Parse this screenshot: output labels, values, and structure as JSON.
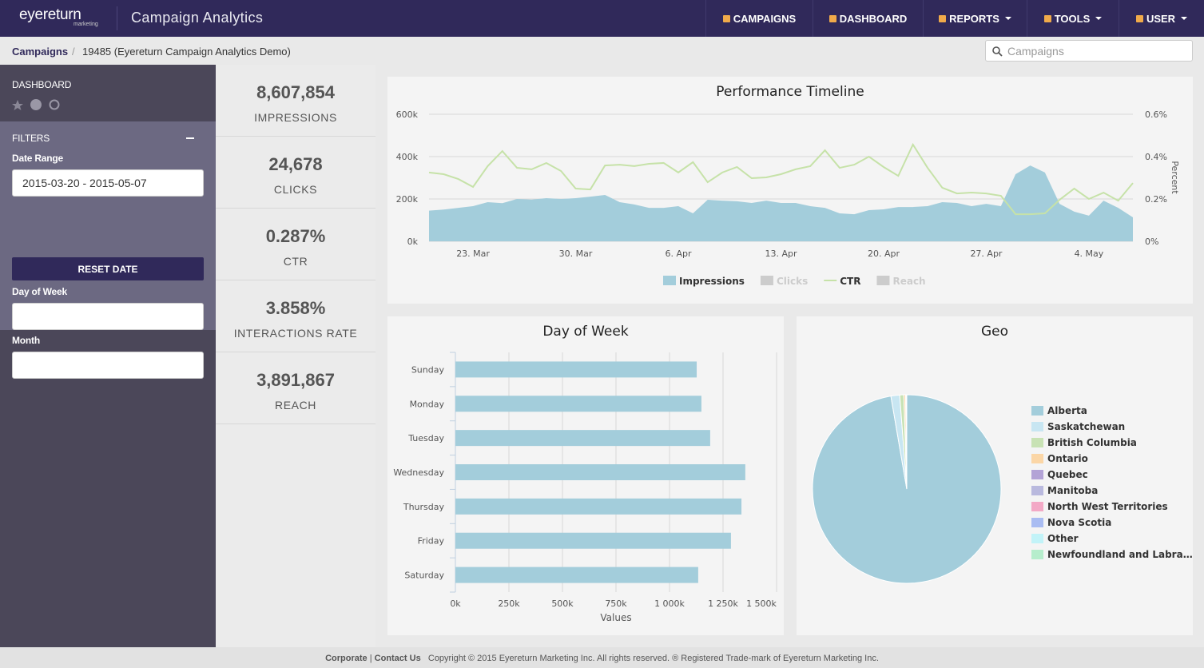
{
  "header": {
    "brand": "eyereturn",
    "brand_sub": "marketing",
    "app_title": "Campaign Analytics",
    "nav": [
      "CAMPAIGNS",
      "DASHBOARD",
      "REPORTS",
      "TOOLS",
      "USER"
    ]
  },
  "breadcrumb": {
    "root": "Campaigns",
    "current": "19485 (Eyereturn Campaign Analytics Demo)"
  },
  "search_placeholder": "Campaigns",
  "sidebar": {
    "dashboard_heading": "DASHBOARD",
    "filters_heading": "FILTERS",
    "date_range_label": "Date Range",
    "date_range_value": "2015-03-20 - 2015-05-07",
    "reset_button": "RESET DATE",
    "day_of_week_label": "Day of Week",
    "month_label": "Month"
  },
  "kpis": [
    {
      "value": "8,607,854",
      "label": "IMPRESSIONS"
    },
    {
      "value": "24,678",
      "label": "CLICKS"
    },
    {
      "value": "0.287%",
      "label": "CTR"
    },
    {
      "value": "3.858%",
      "label": "INTERACTIONS RATE"
    },
    {
      "value": "3,891,867",
      "label": "REACH"
    }
  ],
  "chart_data": [
    {
      "type": "line",
      "title": "Performance Timeline",
      "y2label": "Percent",
      "categories": [
        null,
        null,
        null,
        "23. Mar",
        null,
        null,
        null,
        null,
        null,
        null,
        "30. Mar",
        null,
        null,
        null,
        null,
        null,
        null,
        "6. Apr",
        null,
        null,
        null,
        null,
        null,
        null,
        "13. Apr",
        null,
        null,
        null,
        null,
        null,
        null,
        "20. Apr",
        null,
        null,
        null,
        null,
        null,
        null,
        "27. Apr",
        null,
        null,
        null,
        null,
        null,
        null,
        "4. May",
        null,
        null,
        null
      ],
      "ylim": [
        0,
        600000
      ],
      "yticks": [
        {
          "value": 0,
          "label": "0k"
        },
        {
          "value": 200000,
          "label": "200k"
        },
        {
          "value": 400000,
          "label": "400k"
        },
        {
          "value": 600000,
          "label": "600k"
        }
      ],
      "y2lim": [
        0,
        0.6
      ],
      "y2ticks": [
        {
          "value": 0,
          "label": "0%"
        },
        {
          "value": 0.2,
          "label": "0.2%"
        },
        {
          "value": 0.4,
          "label": "0.4%"
        },
        {
          "value": 0.6,
          "label": "0.6%"
        }
      ],
      "grid": true,
      "series": [
        {
          "name": "Impressions",
          "color": "#a3cddb",
          "mark": "area",
          "values": [
            145000,
            150000,
            158000,
            166000,
            185000,
            180000,
            200000,
            197000,
            204000,
            200000,
            204000,
            211000,
            219000,
            185000,
            174000,
            158000,
            158000,
            166000,
            132000,
            196000,
            192000,
            189000,
            181000,
            192000,
            181000,
            181000,
            166000,
            158000,
            132000,
            128000,
            147000,
            151000,
            162000,
            162000,
            166000,
            185000,
            181000,
            166000,
            177000,
            166000,
            317000,
            358000,
            325000,
            177000,
            140000,
            121000,
            192000,
            158000,
            113000
          ]
        },
        {
          "name": "Clicks",
          "color": "#cccccc",
          "mark": "area",
          "visible": false
        },
        {
          "name": "CTR",
          "color": "#c6e2a8",
          "mark": "line",
          "axis": "y2",
          "values": [
            0.325,
            0.317,
            0.294,
            0.257,
            0.355,
            0.426,
            0.347,
            0.34,
            0.37,
            0.332,
            0.249,
            0.245,
            0.358,
            0.362,
            0.355,
            0.366,
            0.37,
            0.325,
            0.374,
            0.279,
            0.325,
            0.351,
            0.298,
            0.302,
            0.317,
            0.34,
            0.355,
            0.43,
            0.347,
            0.362,
            0.4,
            0.351,
            0.309,
            0.457,
            0.347,
            0.253,
            0.226,
            0.23,
            0.226,
            0.215,
            0.128,
            0.128,
            0.132,
            0.196,
            0.249,
            0.2,
            0.23,
            0.192,
            0.275
          ]
        },
        {
          "name": "Reach",
          "color": "#cccccc",
          "mark": "area",
          "visible": false
        }
      ]
    },
    {
      "type": "bar",
      "orientation": "horizontal",
      "title": "Day of Week",
      "xlabel": "Values",
      "color": "#a3cddb",
      "categories": [
        "Sunday",
        "Monday",
        "Tuesday",
        "Wednesday",
        "Thursday",
        "Friday",
        "Saturday"
      ],
      "values": [
        1127000,
        1149000,
        1190000,
        1354000,
        1336000,
        1287000,
        1134000
      ],
      "xlim": [
        0,
        1500000
      ],
      "xticks": [
        {
          "value": 0,
          "label": "0k"
        },
        {
          "value": 250000,
          "label": "250k"
        },
        {
          "value": 500000,
          "label": "500k"
        },
        {
          "value": 750000,
          "label": "750k"
        },
        {
          "value": 1000000,
          "label": "1 000k"
        },
        {
          "value": 1250000,
          "label": "1 250k"
        },
        {
          "value": 1500000,
          "label": "1 500k"
        }
      ],
      "grid": true
    },
    {
      "type": "pie",
      "title": "Geo",
      "categories": [
        "Alberta",
        "Saskatchewan",
        "British Columbia",
        "Ontario",
        "Quebec",
        "Manitoba",
        "North West Territories",
        "Nova Scotia",
        "Other",
        "Newfoundland and Labra…"
      ],
      "values": [
        97.3,
        1.5,
        0.7,
        0.3,
        0.1,
        0.05,
        0.02,
        0.02,
        0.005,
        0.005
      ],
      "colors": [
        "#a3cddb",
        "#c8e6f2",
        "#c8e2b4",
        "#fbd6a6",
        "#b3a3d6",
        "#b9b9de",
        "#f3a9c6",
        "#a9bcf2",
        "#c2f3f8",
        "#b6edcc"
      ],
      "legend": "right"
    }
  ],
  "footer": {
    "links": [
      "Corporate",
      "Contact Us"
    ],
    "copyright": "Copyright © 2015 Eyereturn Marketing Inc. All rights reserved. ® Registered Trade-mark of Eyereturn Marketing Inc."
  }
}
